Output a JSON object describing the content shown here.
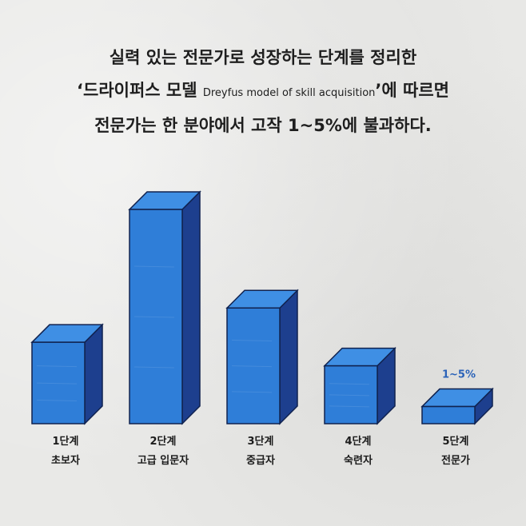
{
  "headline": {
    "line1": "실력 있는 전문가로 성장하는 단계를 정리한",
    "line2_pre": "‘드라이퍼스 모델 ",
    "line2_en": "Dreyfus model of skill acquisition",
    "line2_post": "’에 따르면",
    "line3": "전문가는 한 분야에서 고작 1~5%에 불과하다."
  },
  "chart_data": {
    "type": "bar",
    "categories": [
      [
        "1단계",
        "초보자"
      ],
      [
        "2단계",
        "고급 입문자"
      ],
      [
        "3단계",
        "중급자"
      ],
      [
        "4단계",
        "숙련자"
      ],
      [
        "5단계",
        "전문가"
      ]
    ],
    "values": [
      38,
      100,
      54,
      27,
      8
    ],
    "data_labels": [
      "",
      "",
      "",
      "",
      "1~5%"
    ],
    "title": "",
    "xlabel": "",
    "ylabel": "",
    "ylim": [
      0,
      100
    ],
    "grid": false,
    "colors": {
      "front": "#2f7ed8",
      "top": "#3f8fe4",
      "side": "#1d3f8e",
      "outline": "#10224f"
    }
  }
}
